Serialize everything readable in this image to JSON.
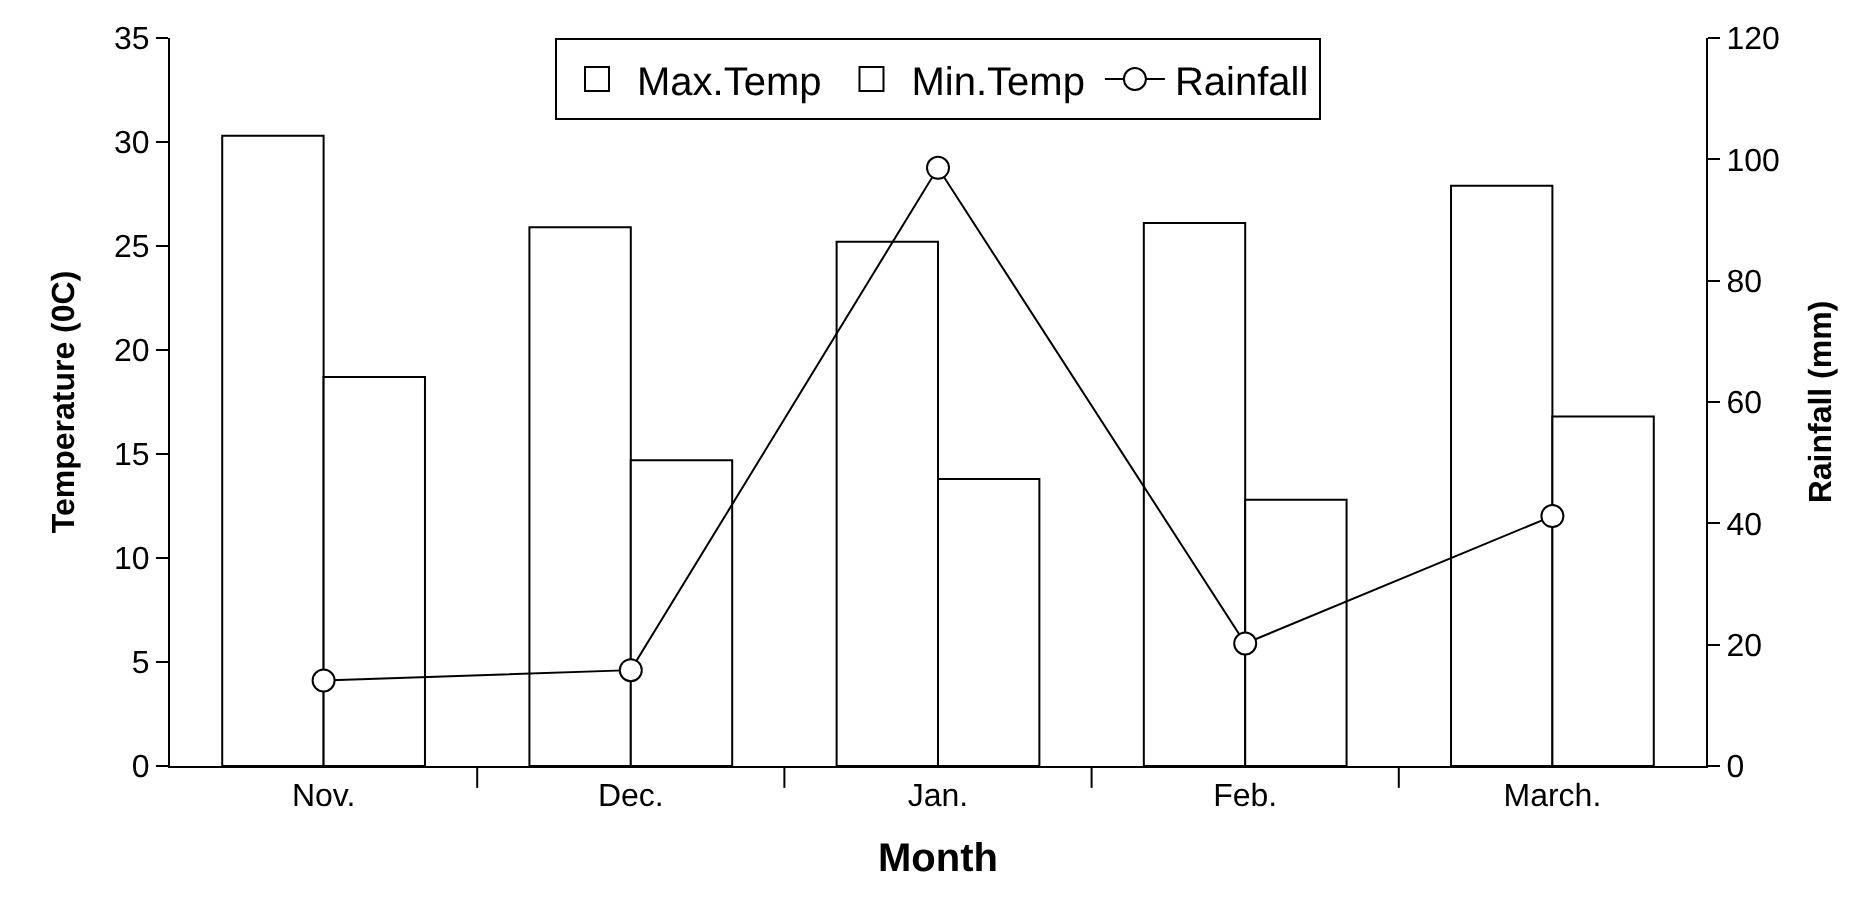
{
  "chart_data": {
    "type": "bar",
    "xlabel": "Month",
    "ylabel": "Temperature (0C)",
    "y2label": "Rainfall (mm)",
    "categories": [
      "Nov.",
      "Dec.",
      "Jan.",
      "Feb.",
      "March."
    ],
    "series": [
      {
        "name": "Max.Temp",
        "color": "#ffffff",
        "values": [
          30.3,
          25.9,
          25.2,
          26.1,
          27.9
        ]
      },
      {
        "name": "Min.Temp",
        "color": "#ffffff",
        "values": [
          18.7,
          14.7,
          13.8,
          12.8,
          16.8
        ]
      },
      {
        "name": "Rainfall",
        "type": "line",
        "axis": "y2",
        "color": "#000000",
        "marker": "circle",
        "values": [
          14.1,
          15.8,
          98.6,
          20.2,
          41.2
        ]
      }
    ],
    "ylim": [
      0,
      35
    ],
    "yticks": [
      0,
      5,
      10,
      15,
      20,
      25,
      30,
      35
    ],
    "y2lim": [
      0,
      120
    ],
    "y2ticks": [
      0,
      20,
      40,
      60,
      80,
      100,
      120
    ],
    "legend": "top"
  }
}
